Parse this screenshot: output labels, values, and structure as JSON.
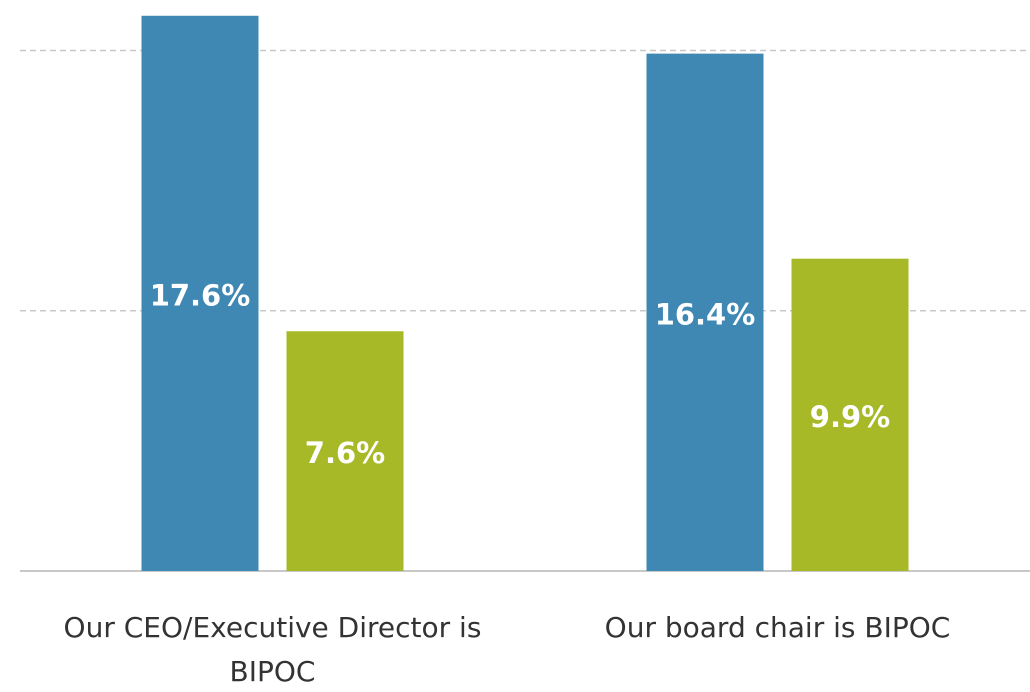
{
  "chart_data": {
    "type": "bar",
    "categories": [
      "Our CEO/Executive Director is BIPOC",
      "Our board chair is BIPOC"
    ],
    "series": [
      {
        "color": "#3f88b3",
        "values": [
          17.6,
          16.4
        ],
        "value_labels": [
          "17.6%",
          "16.4%"
        ]
      },
      {
        "color": "#a7b927",
        "values": [
          7.6,
          9.9
        ],
        "value_labels": [
          "7.6%",
          "9.9%"
        ]
      }
    ],
    "ylim": [
      0,
      18.1
    ],
    "yticks": [
      8.25,
      16.5
    ],
    "grid": true
  }
}
